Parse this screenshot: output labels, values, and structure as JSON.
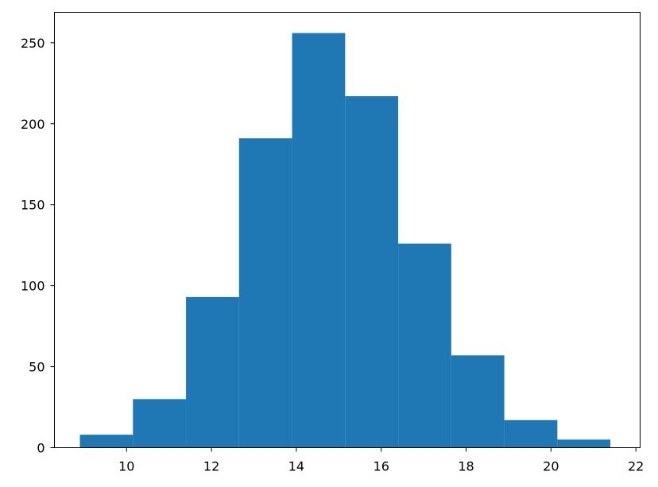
{
  "chart_data": {
    "type": "bar",
    "bins": [
      {
        "x0": 8.9,
        "x1": 10.15,
        "count": 8
      },
      {
        "x0": 10.15,
        "x1": 11.4,
        "count": 30
      },
      {
        "x0": 11.4,
        "x1": 12.65,
        "count": 93
      },
      {
        "x0": 12.65,
        "x1": 13.9,
        "count": 191
      },
      {
        "x0": 13.9,
        "x1": 15.15,
        "count": 256
      },
      {
        "x0": 15.15,
        "x1": 16.4,
        "count": 217
      },
      {
        "x0": 16.4,
        "x1": 17.65,
        "count": 126
      },
      {
        "x0": 17.65,
        "x1": 18.9,
        "count": 57
      },
      {
        "x0": 18.9,
        "x1": 20.15,
        "count": 17
      },
      {
        "x0": 20.15,
        "x1": 21.4,
        "count": 5
      }
    ],
    "title": "",
    "xlabel": "",
    "ylabel": "",
    "xlim": [
      8.3,
      22.1
    ],
    "ylim": [
      0,
      268.8
    ],
    "xticks": [
      10,
      12,
      14,
      16,
      18,
      20,
      22
    ],
    "yticks": [
      0,
      50,
      100,
      150,
      200,
      250
    ],
    "grid": false,
    "bar_color": "#1f77b4"
  }
}
